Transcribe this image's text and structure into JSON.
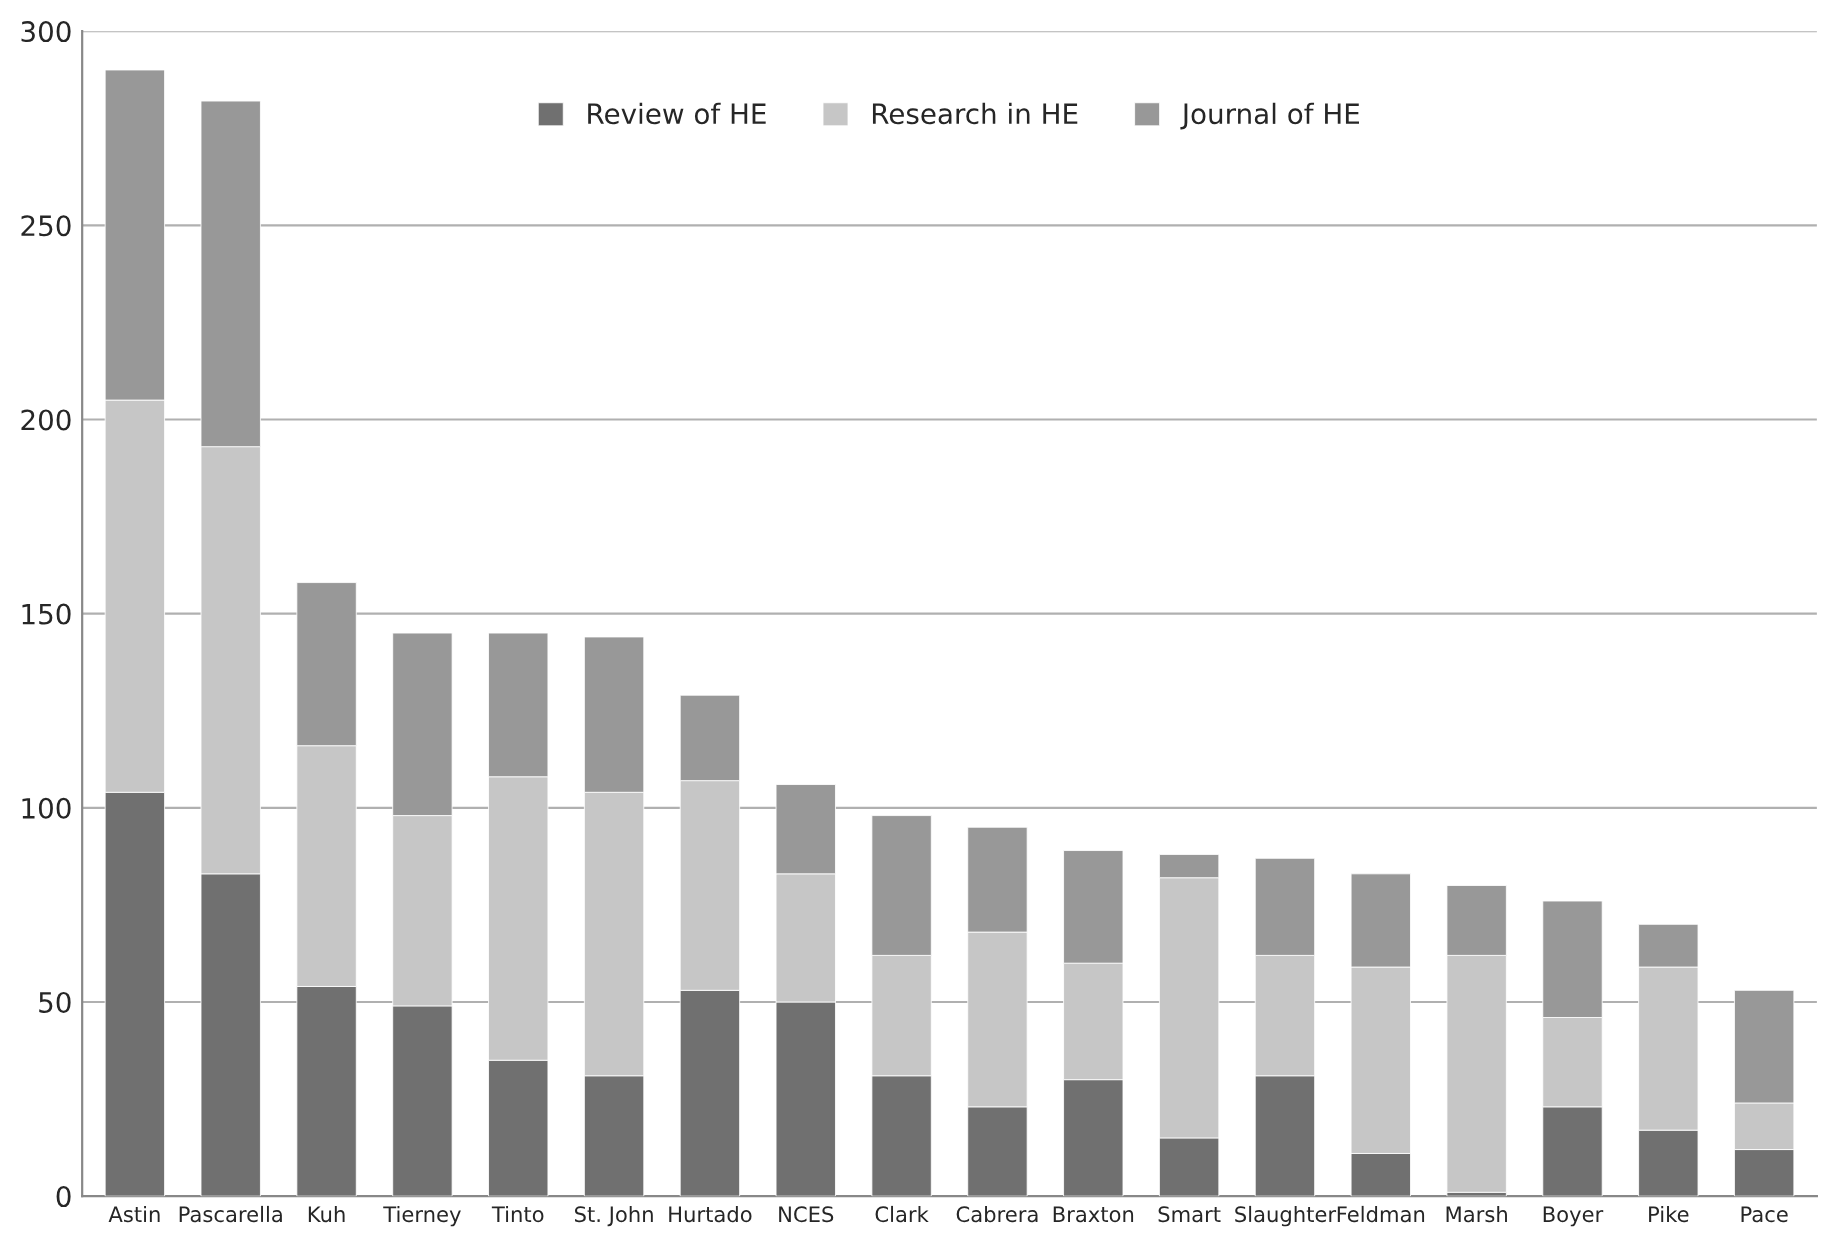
{
  "chart_data": {
    "type": "bar",
    "stacked": true,
    "categories": [
      "Astin",
      "Pascarella",
      "Kuh",
      "Tierney",
      "Tinto",
      "St. John",
      "Hurtado",
      "NCES",
      "Clark",
      "Cabrera",
      "Braxton",
      "Smart",
      "Slaughter",
      "Feldman",
      "Marsh",
      "Boyer",
      "Pike",
      "Pace"
    ],
    "series": [
      {
        "name": "Review of HE",
        "color": "#707070",
        "values": [
          104,
          83,
          54,
          49,
          35,
          31,
          53,
          50,
          31,
          23,
          30,
          15,
          31,
          11,
          1,
          23,
          17,
          12
        ]
      },
      {
        "name": "Research in HE",
        "color": "#c6c6c6",
        "values": [
          101,
          110,
          62,
          49,
          73,
          73,
          54,
          33,
          31,
          45,
          30,
          67,
          31,
          48,
          61,
          23,
          42,
          12
        ]
      },
      {
        "name": "Journal of HE",
        "color": "#989898",
        "values": [
          85,
          89,
          42,
          47,
          37,
          40,
          22,
          23,
          36,
          27,
          29,
          6,
          25,
          24,
          18,
          30,
          11,
          29
        ]
      }
    ],
    "ylim": [
      0,
      300
    ],
    "yticks": [
      0,
      50,
      100,
      150,
      200,
      250,
      300
    ],
    "grid": "y",
    "legend": "top"
  }
}
